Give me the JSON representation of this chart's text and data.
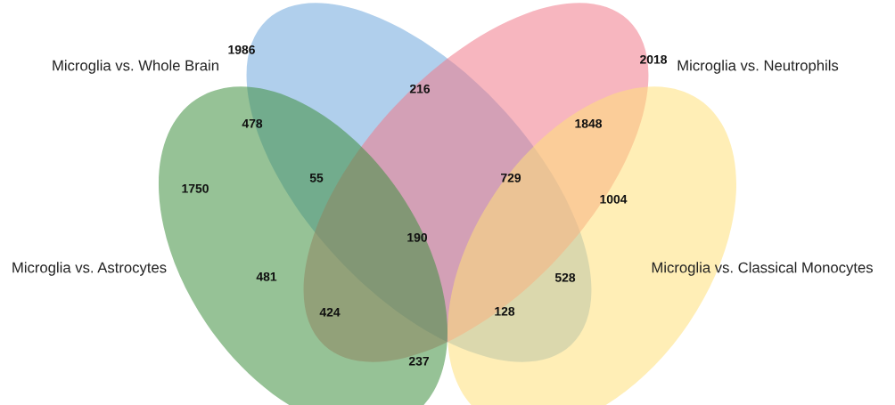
{
  "chart_data": {
    "type": "other",
    "annotations": [
      "Microglia vs. Whole Brain",
      "Microglia vs. Neutrophils",
      "Microglia vs. Astrocytes",
      "Microglia vs. Classical Monocytes"
    ],
    "categories": [
      null,
      null,
      null,
      null,
      null,
      null,
      null,
      null,
      null,
      null,
      null,
      null,
      null,
      null,
      null
    ],
    "values": [
      1986,
      2018,
      216,
      478,
      1848,
      55,
      729,
      1750,
      1004,
      190,
      481,
      528,
      424,
      128,
      237
    ],
    "data_labels": true
  }
}
